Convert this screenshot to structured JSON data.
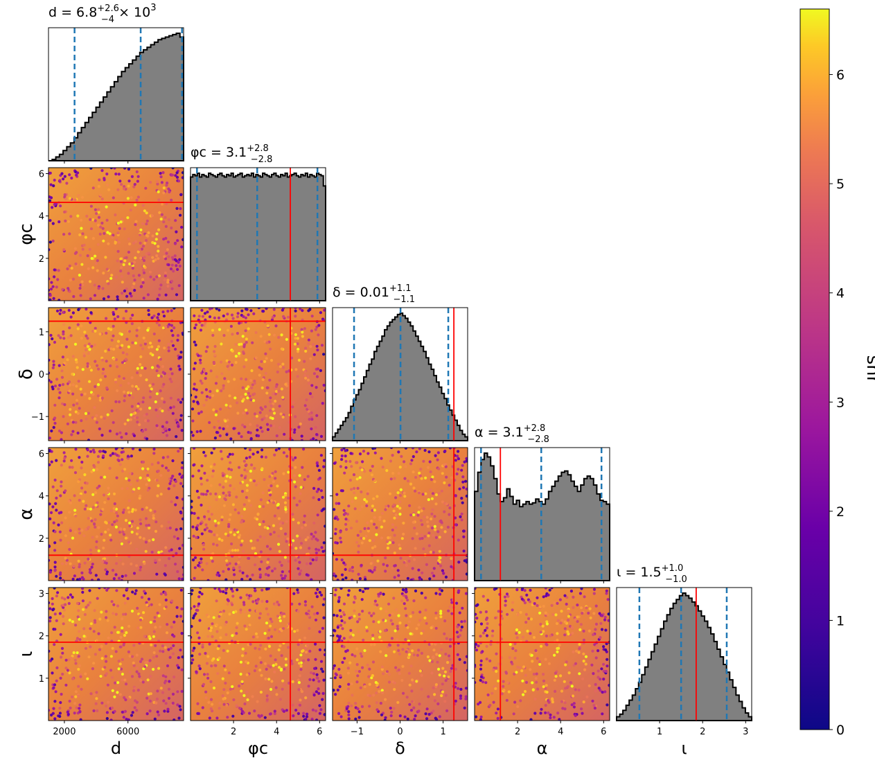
{
  "chart_data": {
    "type": "corner",
    "parameters": [
      {
        "key": "d",
        "label": "d",
        "range": [
          1000,
          9500
        ],
        "ticks": [
          2000,
          6000
        ],
        "tick_labels": [
          "2000",
          "6000"
        ],
        "title": "d = 6.8",
        "title_sup": "+2.6",
        "title_sub": "−4",
        "title_suffix": " × 10",
        "title_suffix_sup": "3",
        "quantiles": [
          2640,
          6800,
          9400
        ],
        "truth": null,
        "hist": [
          0.0,
          0.01,
          0.03,
          0.05,
          0.08,
          0.11,
          0.14,
          0.18,
          0.22,
          0.26,
          0.3,
          0.34,
          0.38,
          0.42,
          0.46,
          0.5,
          0.54,
          0.58,
          0.62,
          0.66,
          0.7,
          0.73,
          0.76,
          0.79,
          0.82,
          0.85,
          0.87,
          0.89,
          0.91,
          0.93,
          0.95,
          0.96,
          0.97,
          0.98,
          0.99,
          1.0,
          0.97
        ]
      },
      {
        "key": "phi_c",
        "label": "φc",
        "range": [
          0,
          6.28
        ],
        "ticks": [
          2,
          4,
          6
        ],
        "tick_labels": [
          "2",
          "4",
          "6"
        ],
        "title": "φc = 3.1",
        "title_sup": "+2.8",
        "title_sub": "−2.8",
        "title_suffix": "",
        "title_suffix_sup": "",
        "quantiles": [
          0.3,
          3.1,
          5.9
        ],
        "truth": 4.64,
        "hist": [
          0.97,
          0.99,
          0.98,
          1.0,
          0.97,
          0.99,
          0.98,
          0.97,
          1.0,
          0.99,
          0.98,
          0.97,
          0.99,
          1.0,
          0.98,
          0.97,
          0.99,
          0.98,
          1.0,
          0.97,
          0.98,
          0.99,
          1.0,
          0.97,
          0.98,
          0.99,
          0.98,
          1.0,
          0.97,
          0.99,
          0.98,
          0.97,
          1.0,
          0.99,
          0.98,
          0.97,
          0.99,
          1.0,
          0.98,
          0.97,
          0.99,
          0.98,
          1.0,
          0.97,
          0.98,
          0.99,
          1.0,
          0.98,
          0.97,
          0.99,
          0.98,
          1.0,
          0.97,
          0.99,
          0.98,
          0.97,
          1.0,
          0.99,
          0.98,
          0.9
        ]
      },
      {
        "key": "delta",
        "label": "δ",
        "range": [
          -1.57,
          1.57
        ],
        "ticks": [
          -1,
          0,
          1
        ],
        "tick_labels": [
          "−1",
          "0",
          "1"
        ],
        "title": "δ = 0.01",
        "title_sup": "+1.1",
        "title_sub": "−1.1",
        "title_suffix": "",
        "title_suffix_sup": "",
        "quantiles": [
          -1.07,
          0.01,
          1.12
        ],
        "truth": 1.25,
        "hist": [
          0.03,
          0.06,
          0.09,
          0.12,
          0.15,
          0.18,
          0.22,
          0.27,
          0.32,
          0.36,
          0.4,
          0.45,
          0.5,
          0.55,
          0.6,
          0.64,
          0.7,
          0.74,
          0.78,
          0.82,
          0.87,
          0.9,
          0.93,
          0.95,
          0.97,
          0.99,
          1.0,
          0.98,
          0.96,
          0.93,
          0.9,
          0.86,
          0.82,
          0.78,
          0.74,
          0.7,
          0.65,
          0.6,
          0.56,
          0.51,
          0.46,
          0.42,
          0.37,
          0.33,
          0.28,
          0.24,
          0.2,
          0.16,
          0.12,
          0.08,
          0.05,
          0.03
        ]
      },
      {
        "key": "alpha",
        "label": "α",
        "range": [
          0,
          6.28
        ],
        "ticks": [
          2,
          4,
          6
        ],
        "tick_labels": [
          "2",
          "4",
          "6"
        ],
        "title": "α = 3.1",
        "title_sup": "+2.8",
        "title_sub": "−2.8",
        "title_suffix": "",
        "title_suffix_sup": "",
        "quantiles": [
          0.3,
          3.1,
          5.9
        ],
        "truth": 1.2,
        "hist": [
          0.7,
          0.85,
          0.95,
          1.0,
          0.97,
          0.9,
          0.8,
          0.68,
          0.62,
          0.65,
          0.72,
          0.66,
          0.6,
          0.63,
          0.58,
          0.6,
          0.62,
          0.6,
          0.61,
          0.64,
          0.62,
          0.6,
          0.64,
          0.7,
          0.74,
          0.78,
          0.82,
          0.85,
          0.86,
          0.83,
          0.78,
          0.74,
          0.7,
          0.75,
          0.8,
          0.82,
          0.8,
          0.75,
          0.68,
          0.63,
          0.62,
          0.6
        ]
      },
      {
        "key": "iota",
        "label": "ι",
        "range": [
          0,
          3.14
        ],
        "ticks": [
          1,
          2,
          3
        ],
        "tick_labels": [
          "1",
          "2",
          "3"
        ],
        "title": "ι = 1.5",
        "title_sup": "+1.0",
        "title_sub": "−1.0",
        "title_suffix": "",
        "title_suffix_sup": "",
        "quantiles": [
          0.53,
          1.5,
          2.56
        ],
        "truth": 1.85,
        "hist": [
          0.03,
          0.05,
          0.08,
          0.12,
          0.16,
          0.2,
          0.25,
          0.3,
          0.36,
          0.42,
          0.48,
          0.54,
          0.6,
          0.66,
          0.72,
          0.78,
          0.83,
          0.88,
          0.92,
          0.95,
          0.98,
          1.0,
          0.98,
          0.96,
          0.93,
          0.9,
          0.86,
          0.82,
          0.78,
          0.73,
          0.68,
          0.62,
          0.56,
          0.5,
          0.44,
          0.38,
          0.32,
          0.26,
          0.2,
          0.15,
          0.1,
          0.06,
          0.03
        ]
      }
    ],
    "truth_point": {
      "phi_c": 4.64,
      "delta": 1.25,
      "alpha": 1.2,
      "iota": 1.85
    },
    "colorbar": {
      "label": "snr",
      "range": [
        0,
        6.6
      ],
      "ticks": [
        0,
        1,
        2,
        3,
        4,
        5,
        6
      ],
      "tick_labels": [
        "0",
        "1",
        "2",
        "3",
        "4",
        "5",
        "6"
      ],
      "colormap": "plasma"
    },
    "colors": {
      "hist_fill": "#808080",
      "hist_edge": "#000000",
      "quantile_line": "#1f77b4",
      "truth_line": "#ff0000"
    }
  }
}
